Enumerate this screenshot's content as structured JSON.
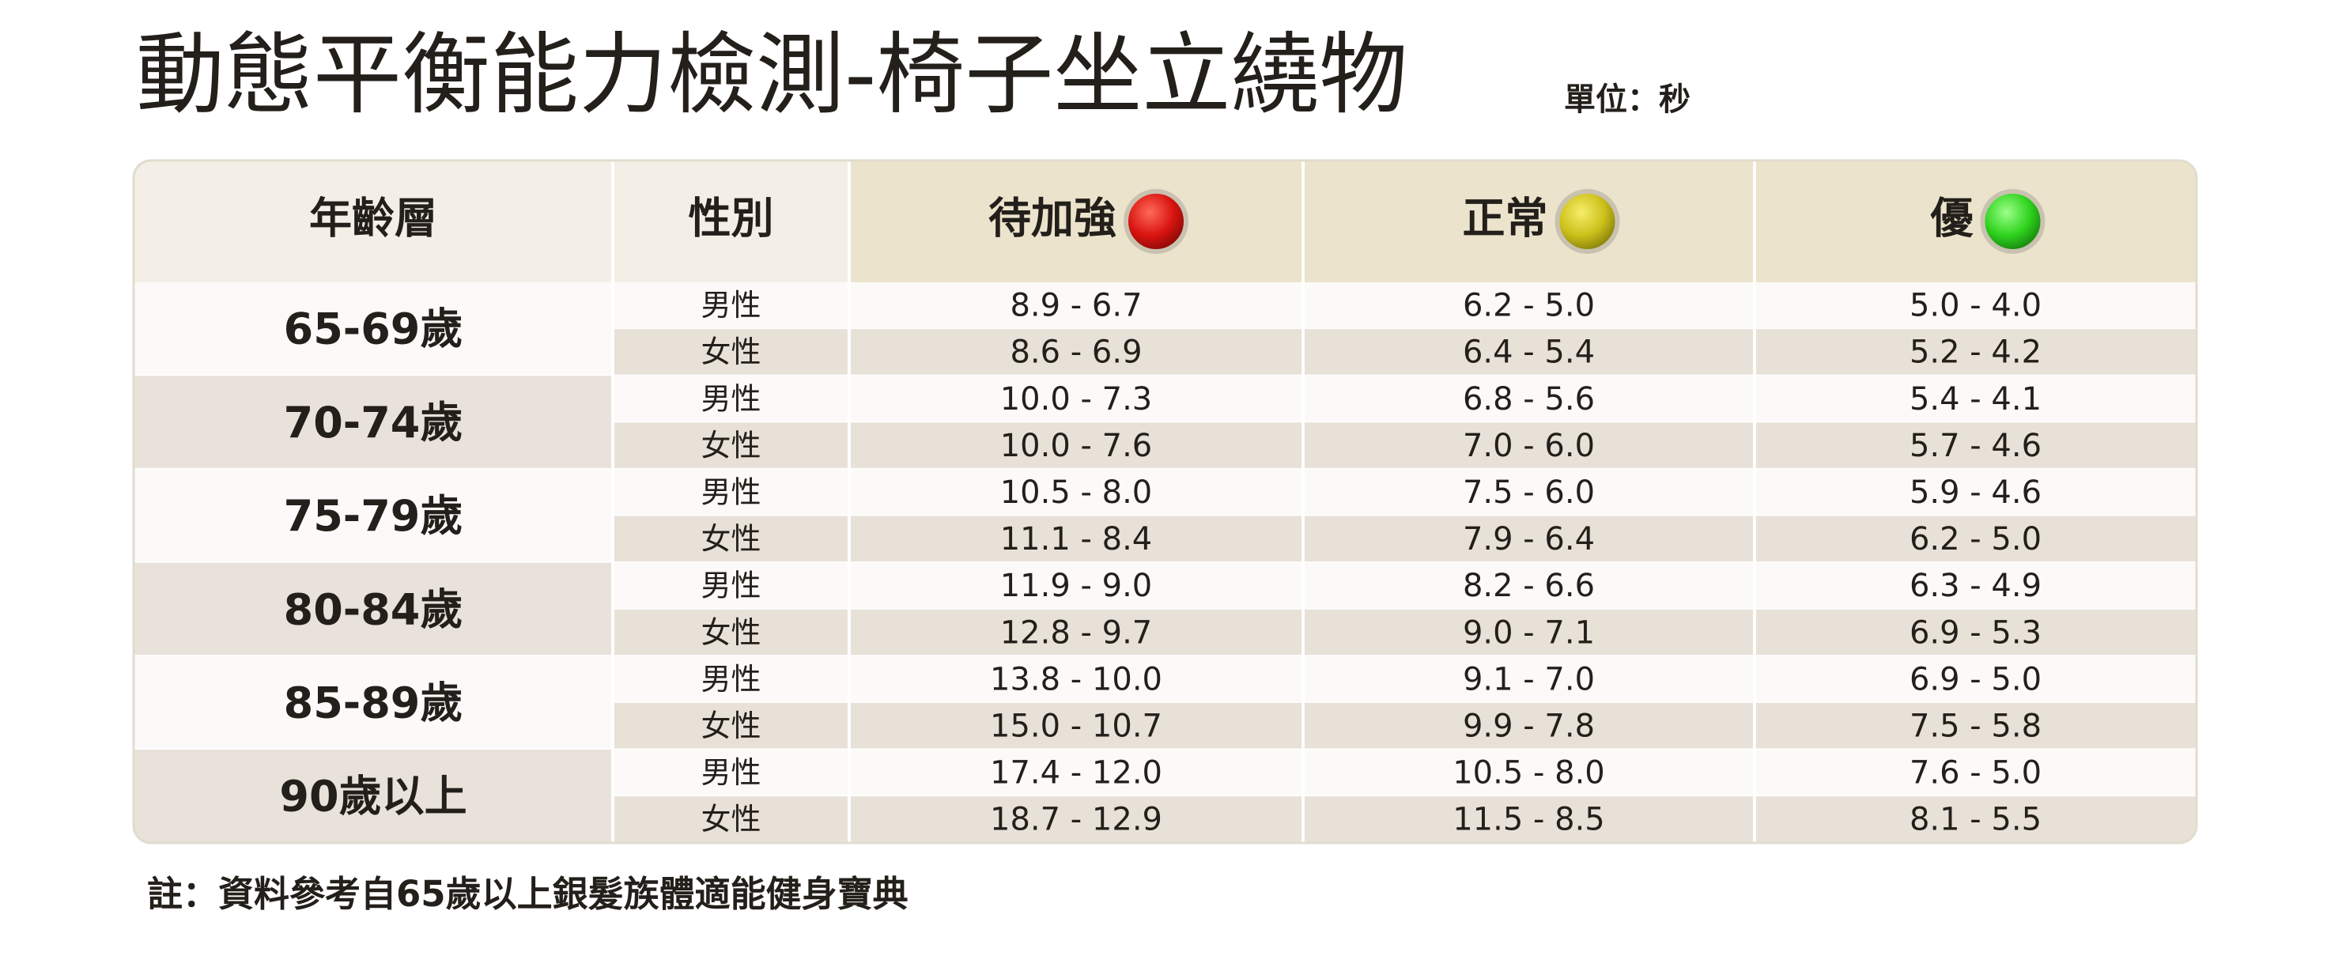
{
  "title": "動態平衡能力檢測-椅子坐立繞物",
  "unit": "單位：秒",
  "table": {
    "headers": [
      "年齡層",
      "性別",
      "待加強",
      "正常",
      "優"
    ],
    "rows": [
      {
        "age": "65-69歲",
        "sub": [
          [
            "男性",
            "8.9 - 6.7",
            "6.2 - 5.0",
            "5.0 - 4.0"
          ],
          [
            "女性",
            "8.6 - 6.9",
            "6.4 - 5.4",
            "5.2 - 4.2"
          ]
        ]
      },
      {
        "age": "70-74歲",
        "sub": [
          [
            "男性",
            "10.0 - 7.3",
            "6.8 - 5.6",
            "5.4 - 4.1"
          ],
          [
            "女性",
            "10.0 - 7.6",
            "7.0 - 6.0",
            "5.7 - 4.6"
          ]
        ]
      },
      {
        "age": "75-79歲",
        "sub": [
          [
            "男性",
            "10.5 - 8.0",
            "7.5 - 6.0",
            "5.9 - 4.6"
          ],
          [
            "女性",
            "11.1 - 8.4",
            "7.9 - 6.4",
            "6.2 - 5.0"
          ]
        ]
      },
      {
        "age": "80-84歲",
        "sub": [
          [
            "男性",
            "11.9 - 9.0",
            "8.2 - 6.6",
            "6.3 - 4.9"
          ],
          [
            "女性",
            "12.8 - 9.7",
            "9.0 - 7.1",
            "6.9 - 5.3"
          ]
        ]
      },
      {
        "age": "85-89歲",
        "sub": [
          [
            "男性",
            "13.8 - 10.0",
            "9.1 - 7.0",
            "6.9 - 5.0"
          ],
          [
            "女性",
            "15.0 - 10.7",
            "9.9 - 7.8",
            "7.5 - 5.8"
          ]
        ]
      },
      {
        "age": "90歲以上",
        "sub": [
          [
            "男性",
            "17.4 - 12.0",
            "10.5 - 8.0",
            "7.6 - 5.0"
          ],
          [
            "女性",
            "18.7 - 12.9",
            "11.5 - 8.5",
            "8.1 - 5.5"
          ]
        ]
      }
    ]
  },
  "note": "註：資料參考自65歲以上銀髮族體適能健身寶典"
}
